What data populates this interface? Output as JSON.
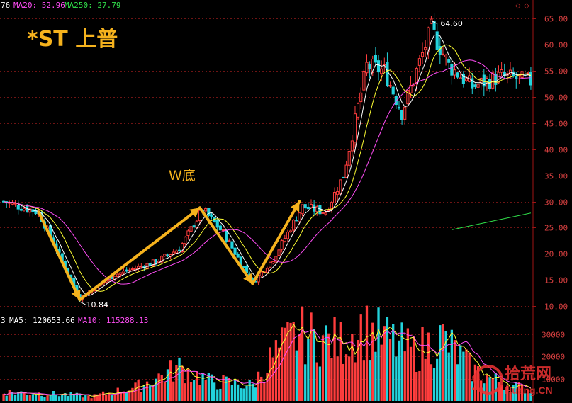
{
  "header": {
    "ma_readouts": [
      {
        "text": "76",
        "color": "#ffffff"
      },
      {
        "text": "MA20: 52.96",
        "color": "#ff4df5"
      },
      {
        "text": "MA250: 27.79",
        "color": "#30e04a"
      }
    ]
  },
  "stock_title": "*ST 上普",
  "pattern_label": "W底",
  "volume_header": {
    "readouts": [
      {
        "text": "3",
        "color": "#ffffff"
      },
      {
        "text": "MA5: 120653.66",
        "color": "#ffffff"
      },
      {
        "text": "MA10: 115288.13",
        "color": "#ff4df5"
      }
    ]
  },
  "watermark": {
    "logo_number": "10",
    "brand_cn": "拾荒网",
    "brand_en": "Huang.CN"
  },
  "colors": {
    "up": "#ff3d3d",
    "down": "#22d3dc",
    "ma5": "#ffffff",
    "ma10": "#ffff33",
    "ma20": "#ff4df5",
    "ma250": "#30e04a",
    "arrow": "#f5b21d",
    "title": "#f5b21d",
    "axis": "#a01414",
    "grid": "#6e1414"
  },
  "chart_data": [
    {
      "type": "candlestick",
      "title": "*ST 上普",
      "annotation": "W底",
      "y_ticks": [
        65.0,
        60.0,
        55.0,
        50.0,
        45.0,
        40.0,
        35.0,
        30.0,
        25.0,
        20.0,
        15.0,
        10.0
      ],
      "y_tick_labels": [
        "65.00",
        "60.00",
        "55.00",
        "50.00",
        "45.00",
        "40.00",
        "35.00",
        "30.00",
        "25.00",
        "20.00",
        "15.00",
        "10.00"
      ],
      "ylim": [
        8.8,
        66.8
      ],
      "low_marker": {
        "label": "10.84",
        "value": 10.84
      },
      "high_marker": {
        "label": "64.60",
        "value": 64.6
      },
      "key_points": [
        {
          "x": 0,
          "y": 30
        },
        {
          "x": 12,
          "y": 28
        },
        {
          "x": 26,
          "y": 11.5
        },
        {
          "x": 38,
          "y": 16
        },
        {
          "x": 52,
          "y": 18.5
        },
        {
          "x": 60,
          "y": 21
        },
        {
          "x": 68,
          "y": 28.5
        },
        {
          "x": 75,
          "y": 24
        },
        {
          "x": 85,
          "y": 14.5
        },
        {
          "x": 92,
          "y": 19
        },
        {
          "x": 102,
          "y": 29
        },
        {
          "x": 110,
          "y": 28
        },
        {
          "x": 116,
          "y": 35
        },
        {
          "x": 124,
          "y": 56
        },
        {
          "x": 130,
          "y": 55
        },
        {
          "x": 136,
          "y": 47
        },
        {
          "x": 141,
          "y": 55
        },
        {
          "x": 146,
          "y": 63
        },
        {
          "x": 152,
          "y": 56
        },
        {
          "x": 160,
          "y": 52
        },
        {
          "x": 170,
          "y": 54
        },
        {
          "x": 180,
          "y": 53
        }
      ],
      "candle_count": 181,
      "ma250_segment": {
        "x": [
          153,
          180
        ],
        "y": [
          24.6,
          27.8
        ]
      },
      "w_bottom_arrows": [
        {
          "from": {
            "x": 12,
            "y": 28
          },
          "to": {
            "x": 26,
            "y": 11.2
          }
        },
        {
          "from": {
            "x": 26,
            "y": 11.2
          },
          "to": {
            "x": 67,
            "y": 28.8
          }
        },
        {
          "from": {
            "x": 67,
            "y": 28.8
          },
          "to": {
            "x": 85,
            "y": 14.3
          }
        },
        {
          "from": {
            "x": 85,
            "y": 14.3
          },
          "to": {
            "x": 101,
            "y": 30
          }
        }
      ]
    },
    {
      "type": "bar",
      "title": "volume",
      "y_ticks": [
        10000,
        20000,
        30000
      ],
      "y_tick_labels": [
        "10000",
        "20000",
        "30000"
      ],
      "ylim": [
        0,
        36000
      ],
      "volume_key_points": [
        {
          "x": 0,
          "y": 4000
        },
        {
          "x": 20,
          "y": 3000
        },
        {
          "x": 30,
          "y": 2000
        },
        {
          "x": 45,
          "y": 6000
        },
        {
          "x": 60,
          "y": 15000
        },
        {
          "x": 70,
          "y": 9000
        },
        {
          "x": 85,
          "y": 7000
        },
        {
          "x": 92,
          "y": 20000
        },
        {
          "x": 100,
          "y": 30000
        },
        {
          "x": 115,
          "y": 26000
        },
        {
          "x": 122,
          "y": 33000
        },
        {
          "x": 140,
          "y": 22000
        },
        {
          "x": 150,
          "y": 28000
        },
        {
          "x": 160,
          "y": 14000
        },
        {
          "x": 170,
          "y": 8000
        },
        {
          "x": 180,
          "y": 5000
        }
      ]
    }
  ]
}
